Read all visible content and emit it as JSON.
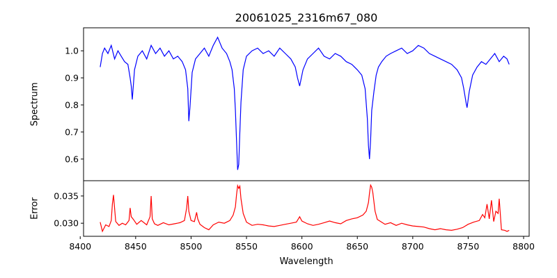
{
  "chart_data": [
    {
      "type": "line",
      "title": "20061025_2316m67_080",
      "xlabel": "",
      "ylabel": "Spectrum",
      "xlim": [
        8403,
        8805
      ],
      "ylim": [
        0.52,
        1.085
      ],
      "yticks": [
        0.6,
        0.7,
        0.8,
        0.9,
        1.0
      ],
      "ytick_labels": [
        "0.6",
        "0.7",
        "0.8",
        "0.9",
        "1.0"
      ],
      "grid": false,
      "color": "#0000ff",
      "series": [
        {
          "x": [
            8418,
            8420,
            8422,
            8425,
            8428,
            8431,
            8434,
            8437,
            8440,
            8443,
            8445,
            8446,
            8447,
            8449,
            8452,
            8456,
            8460,
            8464,
            8468,
            8472,
            8476,
            8480,
            8484,
            8488,
            8492,
            8495,
            8497,
            8498,
            8499,
            8501,
            8504,
            8508,
            8512,
            8516,
            8520,
            8524,
            8528,
            8532,
            8535,
            8537,
            8539,
            8540,
            8541,
            8542,
            8543,
            8544,
            8545,
            8547,
            8550,
            8555,
            8560,
            8565,
            8570,
            8575,
            8580,
            8585,
            8590,
            8594,
            8596,
            8598,
            8601,
            8605,
            8610,
            8615,
            8620,
            8625,
            8630,
            8635,
            8640,
            8645,
            8650,
            8654,
            8657,
            8659,
            8660,
            8661,
            8662,
            8663,
            8665,
            8667,
            8669,
            8672,
            8676,
            8680,
            8685,
            8690,
            8695,
            8700,
            8705,
            8710,
            8715,
            8720,
            8725,
            8730,
            8735,
            8740,
            8744,
            8746,
            8748,
            8749,
            8751,
            8754,
            8758,
            8762,
            8766,
            8770,
            8774,
            8778,
            8782,
            8785,
            8787
          ],
          "y": [
            0.94,
            0.99,
            1.01,
            0.99,
            1.02,
            0.97,
            1.0,
            0.98,
            0.96,
            0.95,
            0.9,
            0.87,
            0.82,
            0.93,
            0.98,
            1.0,
            0.97,
            1.02,
            0.99,
            1.01,
            0.98,
            1.0,
            0.97,
            0.98,
            0.96,
            0.93,
            0.86,
            0.74,
            0.79,
            0.92,
            0.97,
            0.99,
            1.01,
            0.98,
            1.02,
            1.05,
            1.01,
            0.99,
            0.96,
            0.93,
            0.86,
            0.78,
            0.67,
            0.56,
            0.58,
            0.7,
            0.81,
            0.93,
            0.98,
            1.0,
            1.01,
            0.99,
            1.0,
            0.98,
            1.01,
            0.99,
            0.97,
            0.94,
            0.9,
            0.87,
            0.93,
            0.97,
            0.99,
            1.01,
            0.98,
            0.97,
            0.99,
            0.98,
            0.96,
            0.95,
            0.93,
            0.91,
            0.86,
            0.75,
            0.65,
            0.6,
            0.67,
            0.78,
            0.85,
            0.91,
            0.94,
            0.96,
            0.98,
            0.99,
            1.0,
            1.01,
            0.99,
            1.0,
            1.02,
            1.01,
            0.99,
            0.98,
            0.97,
            0.96,
            0.95,
            0.93,
            0.9,
            0.86,
            0.81,
            0.79,
            0.85,
            0.91,
            0.94,
            0.96,
            0.95,
            0.97,
            0.99,
            0.96,
            0.98,
            0.97,
            0.95
          ]
        }
      ]
    },
    {
      "type": "line",
      "title": "",
      "xlabel": "Wavelength",
      "ylabel": "Error",
      "xlim": [
        8403,
        8805
      ],
      "ylim": [
        0.0276,
        0.0378
      ],
      "xticks": [
        8400,
        8450,
        8500,
        8550,
        8600,
        8650,
        8700,
        8750,
        8800
      ],
      "xtick_labels": [
        "8400",
        "8450",
        "8500",
        "8550",
        "8600",
        "8650",
        "8700",
        "8750",
        "8800"
      ],
      "yticks": [
        0.03,
        0.035
      ],
      "ytick_labels": [
        "0.030",
        "0.035"
      ],
      "grid": false,
      "color": "#ff0000",
      "series": [
        {
          "x": [
            8418,
            8420,
            8423,
            8426,
            8428,
            8429,
            8430,
            8432,
            8435,
            8438,
            8441,
            8444,
            8445,
            8446,
            8448,
            8451,
            8455,
            8460,
            8463,
            8464,
            8465,
            8467,
            8470,
            8475,
            8480,
            8485,
            8490,
            8494,
            8496,
            8497,
            8498,
            8500,
            8503,
            8505,
            8506,
            8508,
            8512,
            8516,
            8520,
            8525,
            8530,
            8535,
            8538,
            8540,
            8541,
            8542,
            8543,
            8544,
            8545,
            8547,
            8550,
            8555,
            8560,
            8565,
            8570,
            8575,
            8580,
            8585,
            8590,
            8595,
            8598,
            8600,
            8605,
            8610,
            8615,
            8620,
            8625,
            8630,
            8635,
            8640,
            8645,
            8650,
            8655,
            8658,
            8660,
            8661,
            8662,
            8663,
            8664,
            8666,
            8668,
            8671,
            8675,
            8680,
            8685,
            8690,
            8695,
            8700,
            8705,
            8710,
            8715,
            8720,
            8725,
            8730,
            8735,
            8740,
            8745,
            8750,
            8755,
            8760,
            8763,
            8765,
            8767,
            8769,
            8771,
            8773,
            8775,
            8777,
            8778,
            8780,
            8783,
            8785,
            8787
          ],
          "y": [
            0.0302,
            0.0285,
            0.0297,
            0.0294,
            0.0305,
            0.0335,
            0.0352,
            0.0303,
            0.0296,
            0.03,
            0.0297,
            0.0305,
            0.0328,
            0.0312,
            0.0307,
            0.0298,
            0.0305,
            0.0297,
            0.0312,
            0.035,
            0.0308,
            0.0299,
            0.0296,
            0.0301,
            0.0297,
            0.0299,
            0.0301,
            0.0305,
            0.0328,
            0.035,
            0.0322,
            0.0305,
            0.0303,
            0.032,
            0.0308,
            0.0298,
            0.0292,
            0.0288,
            0.0297,
            0.0302,
            0.03,
            0.0305,
            0.0315,
            0.033,
            0.0352,
            0.0369,
            0.0364,
            0.0368,
            0.0345,
            0.0318,
            0.0302,
            0.0296,
            0.0298,
            0.0297,
            0.0295,
            0.0294,
            0.0296,
            0.0298,
            0.03,
            0.0302,
            0.0312,
            0.0304,
            0.0299,
            0.0296,
            0.0298,
            0.0301,
            0.0304,
            0.0301,
            0.0299,
            0.0305,
            0.0308,
            0.031,
            0.0315,
            0.0322,
            0.0338,
            0.0355,
            0.037,
            0.0366,
            0.0356,
            0.0322,
            0.0307,
            0.0303,
            0.0298,
            0.0301,
            0.0296,
            0.03,
            0.0297,
            0.0295,
            0.0294,
            0.0293,
            0.029,
            0.0288,
            0.029,
            0.0288,
            0.0287,
            0.0289,
            0.0292,
            0.0298,
            0.0302,
            0.0305,
            0.0316,
            0.031,
            0.0335,
            0.0308,
            0.0342,
            0.0303,
            0.0322,
            0.0318,
            0.0345,
            0.0288,
            0.0287,
            0.0285,
            0.0287
          ]
        }
      ]
    }
  ]
}
